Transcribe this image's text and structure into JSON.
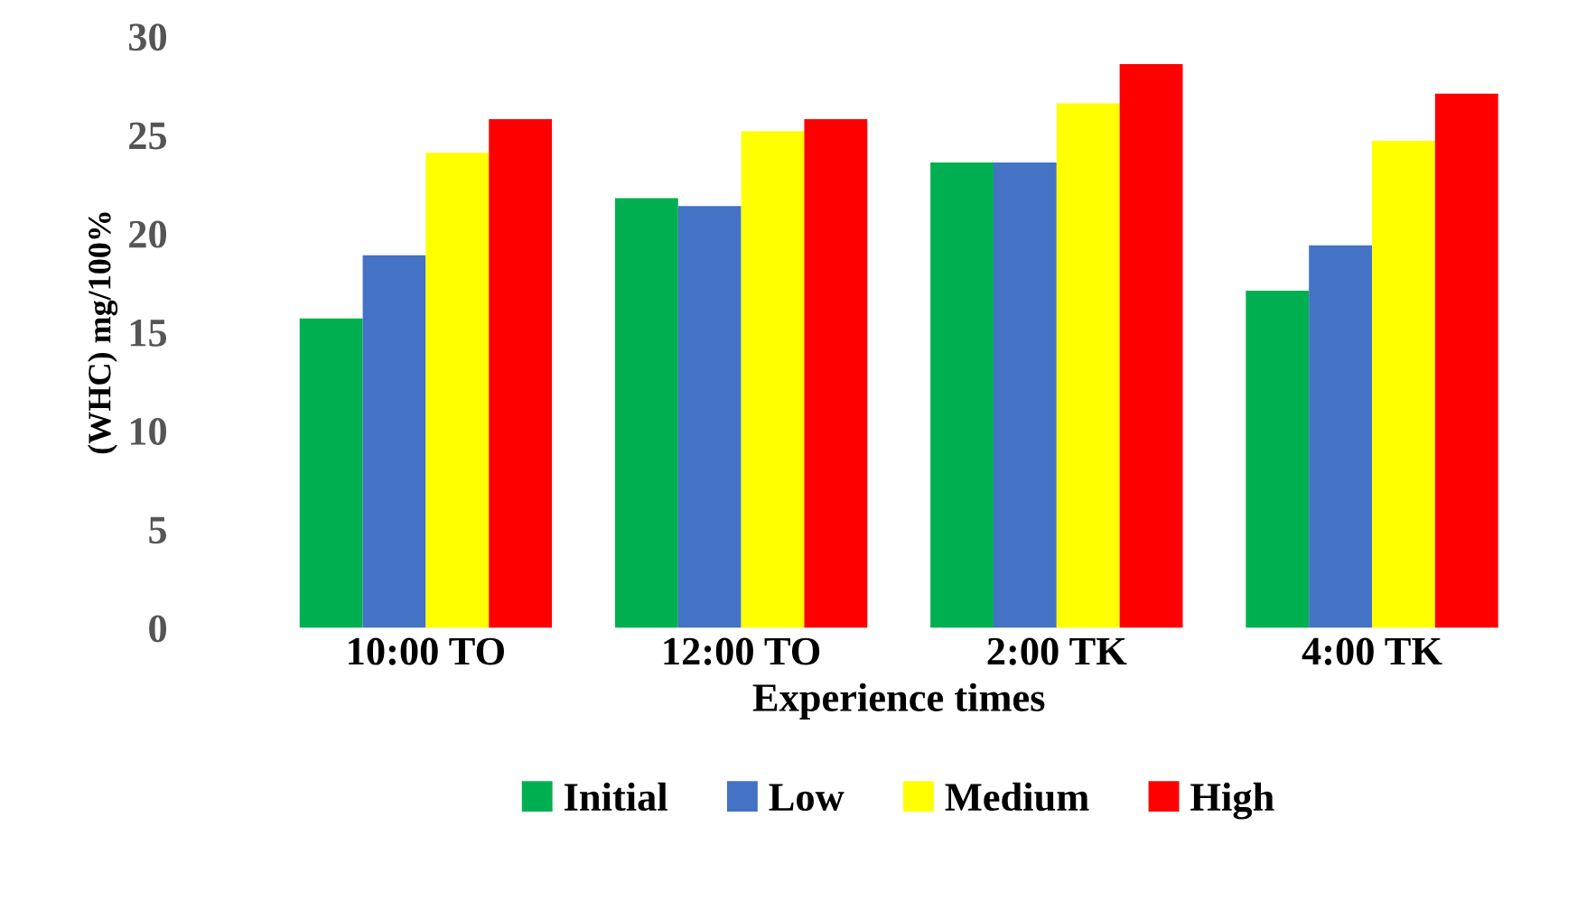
{
  "chart_data": {
    "type": "bar",
    "xlabel": "Experience times",
    "ylabel": "(WHC) mg/100%",
    "categories": [
      "10:00 TO",
      "12:00 TO",
      "2:00 TK",
      "4:00 TK"
    ],
    "series": [
      {
        "name": "Initial",
        "color": "#00b050",
        "values": [
          15.7,
          21.8,
          23.6,
          17.1
        ]
      },
      {
        "name": "Low",
        "color": "#4472c4",
        "values": [
          18.9,
          21.4,
          23.6,
          19.4
        ]
      },
      {
        "name": "Medium",
        "color": "#ffff00",
        "values": [
          24.1,
          25.2,
          26.6,
          24.7
        ]
      },
      {
        "name": "High",
        "color": "#ff0000",
        "values": [
          25.8,
          25.8,
          28.6,
          27.1
        ]
      }
    ],
    "ylim": [
      0,
      30
    ],
    "yticks": [
      0,
      5,
      10,
      15,
      20,
      25,
      30
    ],
    "grid": false,
    "legend": "bottom"
  }
}
